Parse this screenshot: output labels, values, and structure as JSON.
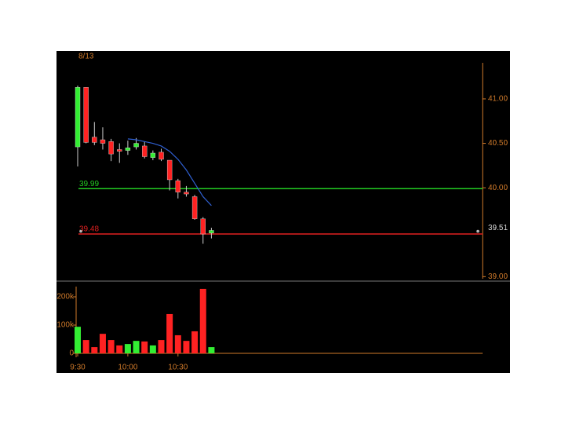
{
  "chart_data": [
    {
      "type": "candlestick",
      "date_label": "8/13",
      "open": [
        40.46,
        41.13,
        40.57,
        40.54,
        40.52,
        40.43,
        40.42,
        40.46,
        40.47,
        40.34,
        40.4,
        40.31,
        40.08,
        39.95,
        39.9,
        39.65,
        39.49
      ],
      "high": [
        41.15,
        41.13,
        40.74,
        40.68,
        40.55,
        40.5,
        40.53,
        40.56,
        40.52,
        40.42,
        40.44,
        40.31,
        40.1,
        40.02,
        39.92,
        39.67,
        39.55
      ],
      "low": [
        40.24,
        40.5,
        40.48,
        40.43,
        40.3,
        40.28,
        40.37,
        40.43,
        40.33,
        40.31,
        40.3,
        39.97,
        39.88,
        39.9,
        39.64,
        39.37,
        39.43
      ],
      "close": [
        41.13,
        40.51,
        40.51,
        40.5,
        40.38,
        40.41,
        40.45,
        40.5,
        40.35,
        40.39,
        40.32,
        40.09,
        39.95,
        39.93,
        39.65,
        39.48,
        39.52
      ],
      "up_color": "#33ee33",
      "down_color": "#ff2222",
      "ma": {
        "color": "#2f5fd0",
        "values": [
          null,
          null,
          null,
          null,
          null,
          null,
          40.55,
          40.54,
          40.52,
          40.5,
          40.47,
          40.41,
          40.32,
          40.2,
          40.05,
          39.9,
          39.8
        ]
      },
      "lines": [
        {
          "value": 39.99,
          "color": "#22cc22"
        },
        {
          "value": 39.48,
          "color": "#e02020"
        }
      ],
      "last_price": 39.51,
      "ylim": [
        38.95,
        41.45
      ],
      "yticks": [
        {
          "value": 39,
          "label": "39.00"
        },
        {
          "value": 40,
          "label": "40.00"
        },
        {
          "value": 40.5,
          "label": "40.50"
        },
        {
          "value": 41,
          "label": "41.00"
        }
      ]
    },
    {
      "type": "bar",
      "categories": [
        "9:30",
        null,
        null,
        null,
        null,
        null,
        "10:00",
        null,
        null,
        null,
        null,
        null,
        "10:30",
        null,
        null,
        null,
        null
      ],
      "values": [
        94000,
        47000,
        22000,
        69000,
        47000,
        28000,
        33000,
        44000,
        42000,
        28000,
        47000,
        139000,
        64000,
        44000,
        78000,
        228000,
        22000
      ],
      "ylim": [
        0,
        250000
      ],
      "yticks": [
        {
          "value": 0,
          "label": "0"
        },
        {
          "value": 100000,
          "label": "100k"
        },
        {
          "value": 200000,
          "label": "200k"
        }
      ]
    }
  ]
}
